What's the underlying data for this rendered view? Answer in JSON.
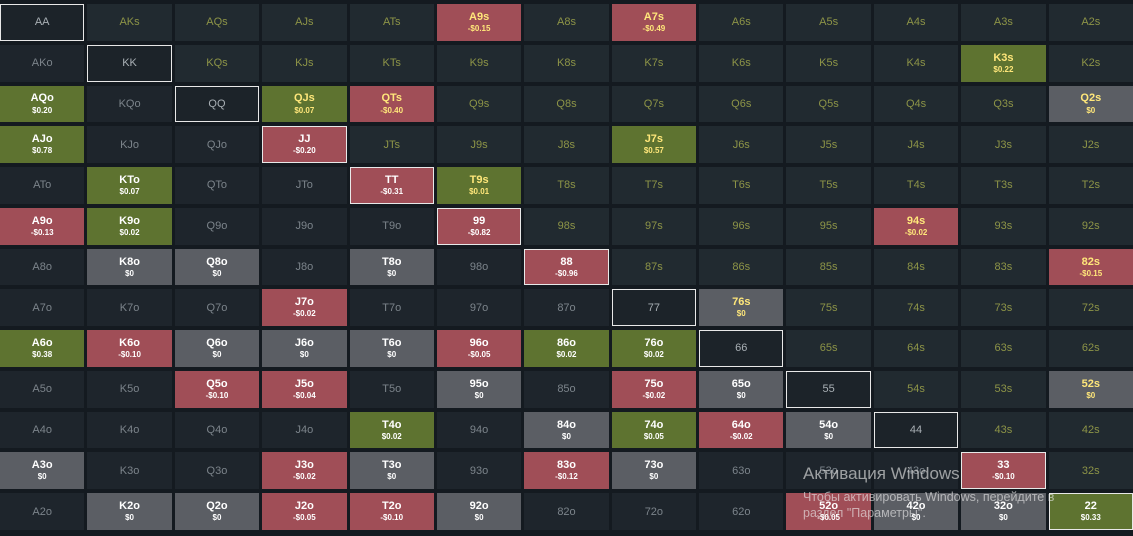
{
  "range_grid": {
    "rows": [
      [
        {
          "hand": "AA",
          "ev": "",
          "color": "empty"
        },
        {
          "hand": "AKs",
          "ev": "",
          "color": "empty"
        },
        {
          "hand": "AQs",
          "ev": "",
          "color": "empty"
        },
        {
          "hand": "AJs",
          "ev": "",
          "color": "empty"
        },
        {
          "hand": "ATs",
          "ev": "",
          "color": "empty"
        },
        {
          "hand": "A9s",
          "ev": "-$0.15",
          "color": "red"
        },
        {
          "hand": "A8s",
          "ev": "",
          "color": "empty"
        },
        {
          "hand": "A7s",
          "ev": "-$0.49",
          "color": "red"
        },
        {
          "hand": "A6s",
          "ev": "",
          "color": "empty"
        },
        {
          "hand": "A5s",
          "ev": "",
          "color": "empty"
        },
        {
          "hand": "A4s",
          "ev": "",
          "color": "empty"
        },
        {
          "hand": "A3s",
          "ev": "",
          "color": "empty"
        },
        {
          "hand": "A2s",
          "ev": "",
          "color": "empty"
        }
      ],
      [
        {
          "hand": "AKo",
          "ev": "",
          "color": "empty"
        },
        {
          "hand": "KK",
          "ev": "",
          "color": "empty"
        },
        {
          "hand": "KQs",
          "ev": "",
          "color": "empty"
        },
        {
          "hand": "KJs",
          "ev": "",
          "color": "empty"
        },
        {
          "hand": "KTs",
          "ev": "",
          "color": "empty"
        },
        {
          "hand": "K9s",
          "ev": "",
          "color": "empty"
        },
        {
          "hand": "K8s",
          "ev": "",
          "color": "empty"
        },
        {
          "hand": "K7s",
          "ev": "",
          "color": "empty"
        },
        {
          "hand": "K6s",
          "ev": "",
          "color": "empty"
        },
        {
          "hand": "K5s",
          "ev": "",
          "color": "empty"
        },
        {
          "hand": "K4s",
          "ev": "",
          "color": "empty"
        },
        {
          "hand": "K3s",
          "ev": "$0.22",
          "color": "green"
        },
        {
          "hand": "K2s",
          "ev": "",
          "color": "empty"
        }
      ],
      [
        {
          "hand": "AQo",
          "ev": "$0.20",
          "color": "green"
        },
        {
          "hand": "KQo",
          "ev": "",
          "color": "empty"
        },
        {
          "hand": "QQ",
          "ev": "",
          "color": "empty"
        },
        {
          "hand": "QJs",
          "ev": "$0.07",
          "color": "green"
        },
        {
          "hand": "QTs",
          "ev": "-$0.40",
          "color": "red"
        },
        {
          "hand": "Q9s",
          "ev": "",
          "color": "empty"
        },
        {
          "hand": "Q8s",
          "ev": "",
          "color": "empty"
        },
        {
          "hand": "Q7s",
          "ev": "",
          "color": "empty"
        },
        {
          "hand": "Q6s",
          "ev": "",
          "color": "empty"
        },
        {
          "hand": "Q5s",
          "ev": "",
          "color": "empty"
        },
        {
          "hand": "Q4s",
          "ev": "",
          "color": "empty"
        },
        {
          "hand": "Q3s",
          "ev": "",
          "color": "empty"
        },
        {
          "hand": "Q2s",
          "ev": "$0",
          "color": "gray"
        }
      ],
      [
        {
          "hand": "AJo",
          "ev": "$0.78",
          "color": "green"
        },
        {
          "hand": "KJo",
          "ev": "",
          "color": "empty"
        },
        {
          "hand": "QJo",
          "ev": "",
          "color": "empty"
        },
        {
          "hand": "JJ",
          "ev": "-$0.20",
          "color": "red"
        },
        {
          "hand": "JTs",
          "ev": "",
          "color": "empty"
        },
        {
          "hand": "J9s",
          "ev": "",
          "color": "empty"
        },
        {
          "hand": "J8s",
          "ev": "",
          "color": "empty"
        },
        {
          "hand": "J7s",
          "ev": "$0.57",
          "color": "green"
        },
        {
          "hand": "J6s",
          "ev": "",
          "color": "empty"
        },
        {
          "hand": "J5s",
          "ev": "",
          "color": "empty"
        },
        {
          "hand": "J4s",
          "ev": "",
          "color": "empty"
        },
        {
          "hand": "J3s",
          "ev": "",
          "color": "empty"
        },
        {
          "hand": "J2s",
          "ev": "",
          "color": "empty"
        }
      ],
      [
        {
          "hand": "ATo",
          "ev": "",
          "color": "empty"
        },
        {
          "hand": "KTo",
          "ev": "$0.07",
          "color": "green"
        },
        {
          "hand": "QTo",
          "ev": "",
          "color": "empty"
        },
        {
          "hand": "JTo",
          "ev": "",
          "color": "empty"
        },
        {
          "hand": "TT",
          "ev": "-$0.31",
          "color": "red"
        },
        {
          "hand": "T9s",
          "ev": "$0.01",
          "color": "green"
        },
        {
          "hand": "T8s",
          "ev": "",
          "color": "empty"
        },
        {
          "hand": "T7s",
          "ev": "",
          "color": "empty"
        },
        {
          "hand": "T6s",
          "ev": "",
          "color": "empty"
        },
        {
          "hand": "T5s",
          "ev": "",
          "color": "empty"
        },
        {
          "hand": "T4s",
          "ev": "",
          "color": "empty"
        },
        {
          "hand": "T3s",
          "ev": "",
          "color": "empty"
        },
        {
          "hand": "T2s",
          "ev": "",
          "color": "empty"
        }
      ],
      [
        {
          "hand": "A9o",
          "ev": "-$0.13",
          "color": "red"
        },
        {
          "hand": "K9o",
          "ev": "$0.02",
          "color": "green"
        },
        {
          "hand": "Q9o",
          "ev": "",
          "color": "empty"
        },
        {
          "hand": "J9o",
          "ev": "",
          "color": "empty"
        },
        {
          "hand": "T9o",
          "ev": "",
          "color": "empty"
        },
        {
          "hand": "99",
          "ev": "-$0.82",
          "color": "red"
        },
        {
          "hand": "98s",
          "ev": "",
          "color": "empty"
        },
        {
          "hand": "97s",
          "ev": "",
          "color": "empty"
        },
        {
          "hand": "96s",
          "ev": "",
          "color": "empty"
        },
        {
          "hand": "95s",
          "ev": "",
          "color": "empty"
        },
        {
          "hand": "94s",
          "ev": "-$0.02",
          "color": "red"
        },
        {
          "hand": "93s",
          "ev": "",
          "color": "empty"
        },
        {
          "hand": "92s",
          "ev": "",
          "color": "empty"
        }
      ],
      [
        {
          "hand": "A8o",
          "ev": "",
          "color": "empty"
        },
        {
          "hand": "K8o",
          "ev": "$0",
          "color": "gray"
        },
        {
          "hand": "Q8o",
          "ev": "$0",
          "color": "gray"
        },
        {
          "hand": "J8o",
          "ev": "",
          "color": "empty"
        },
        {
          "hand": "T8o",
          "ev": "$0",
          "color": "gray"
        },
        {
          "hand": "98o",
          "ev": "",
          "color": "empty"
        },
        {
          "hand": "88",
          "ev": "-$0.96",
          "color": "red"
        },
        {
          "hand": "87s",
          "ev": "",
          "color": "empty"
        },
        {
          "hand": "86s",
          "ev": "",
          "color": "empty"
        },
        {
          "hand": "85s",
          "ev": "",
          "color": "empty"
        },
        {
          "hand": "84s",
          "ev": "",
          "color": "empty"
        },
        {
          "hand": "83s",
          "ev": "",
          "color": "empty"
        },
        {
          "hand": "82s",
          "ev": "-$0.15",
          "color": "red"
        }
      ],
      [
        {
          "hand": "A7o",
          "ev": "",
          "color": "empty"
        },
        {
          "hand": "K7o",
          "ev": "",
          "color": "empty"
        },
        {
          "hand": "Q7o",
          "ev": "",
          "color": "empty"
        },
        {
          "hand": "J7o",
          "ev": "-$0.02",
          "color": "red"
        },
        {
          "hand": "T7o",
          "ev": "",
          "color": "empty"
        },
        {
          "hand": "97o",
          "ev": "",
          "color": "empty"
        },
        {
          "hand": "87o",
          "ev": "",
          "color": "empty"
        },
        {
          "hand": "77",
          "ev": "",
          "color": "empty"
        },
        {
          "hand": "76s",
          "ev": "$0",
          "color": "gray"
        },
        {
          "hand": "75s",
          "ev": "",
          "color": "empty"
        },
        {
          "hand": "74s",
          "ev": "",
          "color": "empty"
        },
        {
          "hand": "73s",
          "ev": "",
          "color": "empty"
        },
        {
          "hand": "72s",
          "ev": "",
          "color": "empty"
        }
      ],
      [
        {
          "hand": "A6o",
          "ev": "$0.38",
          "color": "green"
        },
        {
          "hand": "K6o",
          "ev": "-$0.10",
          "color": "red"
        },
        {
          "hand": "Q6o",
          "ev": "$0",
          "color": "gray"
        },
        {
          "hand": "J6o",
          "ev": "$0",
          "color": "gray"
        },
        {
          "hand": "T6o",
          "ev": "$0",
          "color": "gray"
        },
        {
          "hand": "96o",
          "ev": "-$0.05",
          "color": "red"
        },
        {
          "hand": "86o",
          "ev": "$0.02",
          "color": "green"
        },
        {
          "hand": "76o",
          "ev": "$0.02",
          "color": "green"
        },
        {
          "hand": "66",
          "ev": "",
          "color": "empty"
        },
        {
          "hand": "65s",
          "ev": "",
          "color": "empty"
        },
        {
          "hand": "64s",
          "ev": "",
          "color": "empty"
        },
        {
          "hand": "63s",
          "ev": "",
          "color": "empty"
        },
        {
          "hand": "62s",
          "ev": "",
          "color": "empty"
        }
      ],
      [
        {
          "hand": "A5o",
          "ev": "",
          "color": "empty"
        },
        {
          "hand": "K5o",
          "ev": "",
          "color": "empty"
        },
        {
          "hand": "Q5o",
          "ev": "-$0.10",
          "color": "red"
        },
        {
          "hand": "J5o",
          "ev": "-$0.04",
          "color": "red"
        },
        {
          "hand": "T5o",
          "ev": "",
          "color": "empty"
        },
        {
          "hand": "95o",
          "ev": "$0",
          "color": "gray"
        },
        {
          "hand": "85o",
          "ev": "",
          "color": "empty"
        },
        {
          "hand": "75o",
          "ev": "-$0.02",
          "color": "red"
        },
        {
          "hand": "65o",
          "ev": "$0",
          "color": "gray"
        },
        {
          "hand": "55",
          "ev": "",
          "color": "empty"
        },
        {
          "hand": "54s",
          "ev": "",
          "color": "empty"
        },
        {
          "hand": "53s",
          "ev": "",
          "color": "empty"
        },
        {
          "hand": "52s",
          "ev": "$0",
          "color": "gray"
        }
      ],
      [
        {
          "hand": "A4o",
          "ev": "",
          "color": "empty"
        },
        {
          "hand": "K4o",
          "ev": "",
          "color": "empty"
        },
        {
          "hand": "Q4o",
          "ev": "",
          "color": "empty"
        },
        {
          "hand": "J4o",
          "ev": "",
          "color": "empty"
        },
        {
          "hand": "T4o",
          "ev": "$0.02",
          "color": "green"
        },
        {
          "hand": "94o",
          "ev": "",
          "color": "empty"
        },
        {
          "hand": "84o",
          "ev": "$0",
          "color": "gray"
        },
        {
          "hand": "74o",
          "ev": "$0.05",
          "color": "green"
        },
        {
          "hand": "64o",
          "ev": "-$0.02",
          "color": "red"
        },
        {
          "hand": "54o",
          "ev": "$0",
          "color": "gray"
        },
        {
          "hand": "44",
          "ev": "",
          "color": "empty"
        },
        {
          "hand": "43s",
          "ev": "",
          "color": "empty"
        },
        {
          "hand": "42s",
          "ev": "",
          "color": "empty"
        }
      ],
      [
        {
          "hand": "A3o",
          "ev": "$0",
          "color": "gray"
        },
        {
          "hand": "K3o",
          "ev": "",
          "color": "empty"
        },
        {
          "hand": "Q3o",
          "ev": "",
          "color": "empty"
        },
        {
          "hand": "J3o",
          "ev": "-$0.02",
          "color": "red"
        },
        {
          "hand": "T3o",
          "ev": "$0",
          "color": "gray"
        },
        {
          "hand": "93o",
          "ev": "",
          "color": "empty"
        },
        {
          "hand": "83o",
          "ev": "-$0.12",
          "color": "red"
        },
        {
          "hand": "73o",
          "ev": "$0",
          "color": "gray"
        },
        {
          "hand": "63o",
          "ev": "",
          "color": "empty"
        },
        {
          "hand": "53o",
          "ev": "",
          "color": "empty"
        },
        {
          "hand": "43o",
          "ev": "",
          "color": "empty"
        },
        {
          "hand": "33",
          "ev": "-$0.10",
          "color": "red"
        },
        {
          "hand": "32s",
          "ev": "",
          "color": "empty"
        }
      ],
      [
        {
          "hand": "A2o",
          "ev": "",
          "color": "empty"
        },
        {
          "hand": "K2o",
          "ev": "$0",
          "color": "gray"
        },
        {
          "hand": "Q2o",
          "ev": "$0",
          "color": "gray"
        },
        {
          "hand": "J2o",
          "ev": "-$0.05",
          "color": "red"
        },
        {
          "hand": "T2o",
          "ev": "-$0.10",
          "color": "red"
        },
        {
          "hand": "92o",
          "ev": "$0",
          "color": "gray"
        },
        {
          "hand": "82o",
          "ev": "",
          "color": "empty"
        },
        {
          "hand": "72o",
          "ev": "",
          "color": "empty"
        },
        {
          "hand": "62o",
          "ev": "",
          "color": "empty"
        },
        {
          "hand": "52o",
          "ev": "-$0.05",
          "color": "red"
        },
        {
          "hand": "42o",
          "ev": "$0",
          "color": "gray"
        },
        {
          "hand": "32o",
          "ev": "$0",
          "color": "gray"
        },
        {
          "hand": "22",
          "ev": "$0.33",
          "color": "green"
        }
      ]
    ]
  },
  "watermark": {
    "title": "Активация Windows",
    "subtitle_line1": "Чтобы активировать Windows, перейдите в",
    "subtitle_line2": "раздел \"Параметры\"."
  },
  "colors": {
    "background": "#141a20",
    "cell_empty": "#1f262d",
    "positive_ev": "#5e7330",
    "negative_ev": "#a04e57",
    "zero_ev": "#5b5e64",
    "suited_label": "#8d9447",
    "offsuit_label": "#7c848b",
    "highlight_label": "#ffe77a",
    "pair_border": "#e8e8e8"
  }
}
